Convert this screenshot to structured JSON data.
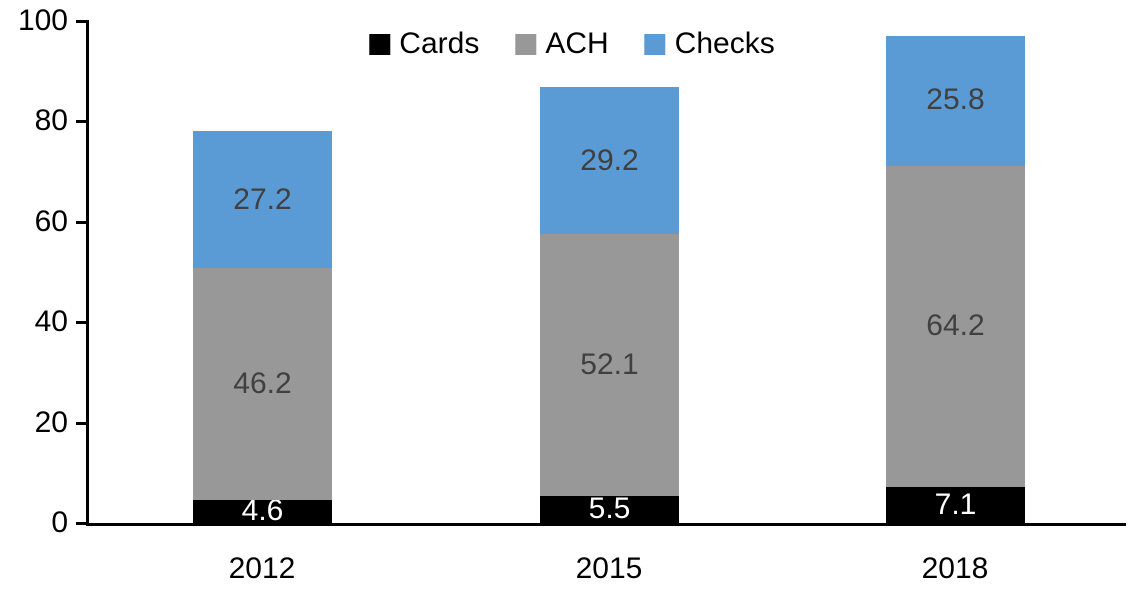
{
  "chart_data": {
    "type": "bar",
    "stacked": true,
    "title": "",
    "xlabel": "",
    "ylabel": "",
    "categories": [
      "2012",
      "2015",
      "2018"
    ],
    "series": [
      {
        "name": "Cards",
        "values": [
          4.6,
          5.5,
          7.1
        ],
        "color": "#000000",
        "label_color": "#FFFFFF"
      },
      {
        "name": "ACH",
        "values": [
          46.2,
          52.1,
          64.2
        ],
        "color": "#989898",
        "label_color": "#404040"
      },
      {
        "name": "Checks",
        "values": [
          27.2,
          29.2,
          25.8
        ],
        "color": "#5B9BD5",
        "label_color": "#404040"
      }
    ],
    "totals": [
      78.0,
      86.8,
      97.1
    ],
    "ylim": [
      0,
      100
    ],
    "yticks": [
      0,
      20,
      40,
      60,
      80,
      100
    ],
    "grid": false,
    "legend_position": "top-center",
    "legend_labels": [
      "Cards",
      "ACH",
      "Checks"
    ],
    "data_labels": true,
    "axis_color": "#000000",
    "background_color": "#FFFFFF"
  }
}
